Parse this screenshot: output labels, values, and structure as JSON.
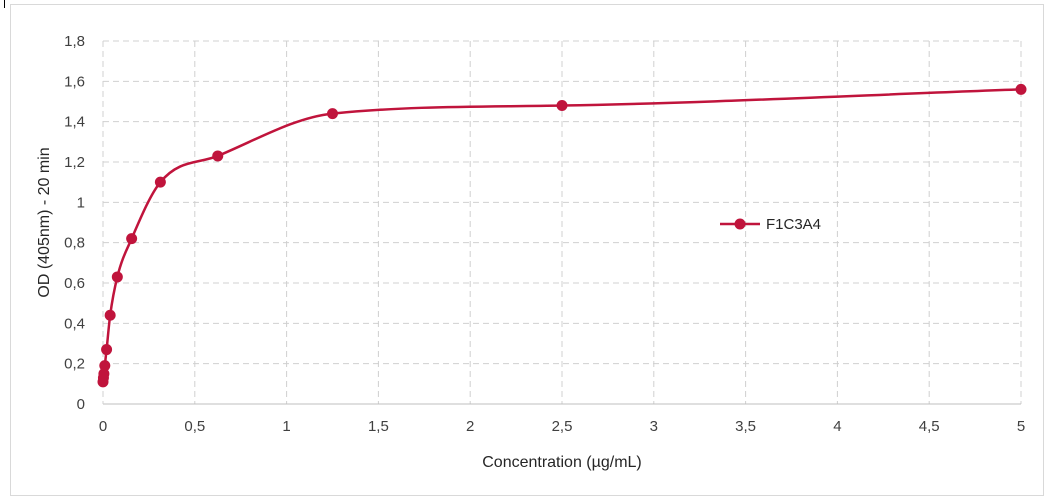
{
  "chart_data": {
    "type": "line",
    "title": "",
    "xlabel": "Concentration (µg/mL)",
    "ylabel": "OD (405nm) - 20 min",
    "xlim": [
      0,
      5
    ],
    "ylim": [
      0,
      1.8
    ],
    "x_ticks": [
      "0",
      "0,5",
      "1",
      "1,5",
      "2",
      "2,5",
      "3",
      "3,5",
      "4",
      "4,5",
      "5"
    ],
    "y_ticks": [
      "0",
      "0,2",
      "0,4",
      "0,6",
      "0,8",
      "1",
      "1,2",
      "1,4",
      "1,6",
      "1,8"
    ],
    "grid": true,
    "legend_position": "right-middle",
    "series": [
      {
        "name": "F1C3A4",
        "color": "#C0143C",
        "x": [
          0,
          0.0024,
          0.0049,
          0.0098,
          0.0195,
          0.039,
          0.078,
          0.156,
          0.3125,
          0.625,
          1.25,
          2.5,
          5
        ],
        "y": [
          0.11,
          0.13,
          0.15,
          0.19,
          0.27,
          0.44,
          0.63,
          0.82,
          1.1,
          1.23,
          1.44,
          1.48,
          1.56
        ]
      }
    ]
  }
}
